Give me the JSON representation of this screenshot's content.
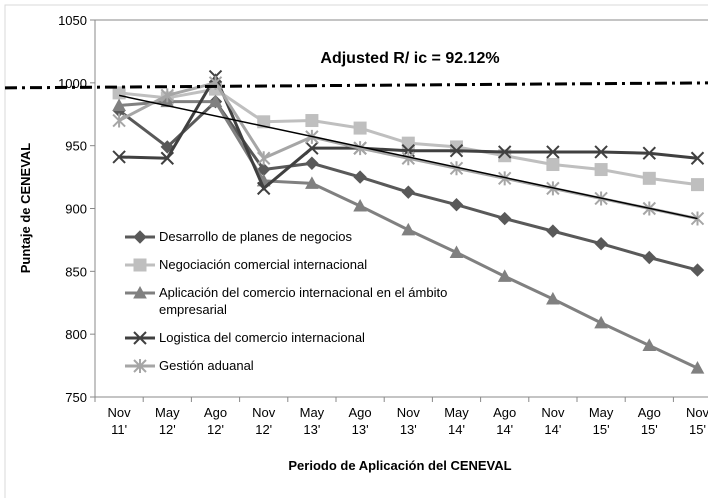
{
  "chart_data": {
    "type": "line",
    "annotation": "Adjusted R/ ic = 92.12%",
    "xlabel": "Periodo de Aplicación del CENEVAL",
    "ylabel": "Puntaje de CENEVAL",
    "categories": [
      [
        "Nov",
        "11'"
      ],
      [
        "May",
        "12'"
      ],
      [
        "Ago",
        "12'"
      ],
      [
        "Nov",
        "12'"
      ],
      [
        "May",
        "13'"
      ],
      [
        "Ago",
        "13'"
      ],
      [
        "Nov",
        "13'"
      ],
      [
        "May",
        "14'"
      ],
      [
        "Ago",
        "14'"
      ],
      [
        "Nov",
        "14'"
      ],
      [
        "May",
        "15'"
      ],
      [
        "Ago",
        "15'"
      ],
      [
        "Nov",
        "15'"
      ]
    ],
    "ylim": [
      750,
      1050
    ],
    "yticks": [
      750,
      800,
      850,
      900,
      950,
      1000,
      1050
    ],
    "series": [
      {
        "name": "Desarrollo de planes de negocios",
        "color": "#595959",
        "marker": "diamond",
        "values": [
          978,
          949,
          985,
          931,
          936,
          925,
          913,
          903,
          892,
          882,
          872,
          861,
          851
        ]
      },
      {
        "name": "Negociación comercial internacional",
        "color": "#bfbfbf",
        "marker": "square",
        "values": [
          992,
          988,
          995,
          969,
          970,
          964,
          952,
          949,
          942,
          935,
          931,
          924,
          919
        ]
      },
      {
        "name": "Aplicación del comercio internacional en el ámbito empresarial",
        "color": "#808080",
        "marker": "triangle",
        "values": [
          982,
          985,
          985,
          922,
          920,
          902,
          883,
          865,
          846,
          828,
          809,
          791,
          773
        ]
      },
      {
        "name": "Logistica del comercio internacional",
        "color": "#404040",
        "marker": "x",
        "values": [
          941,
          940,
          1005,
          916,
          948,
          948,
          946,
          946,
          945,
          945,
          945,
          944,
          940
        ]
      },
      {
        "name": "Gestión aduanal",
        "color": "#a6a6a6",
        "marker": "star",
        "values": [
          970,
          990,
          1000,
          940,
          957,
          948,
          940,
          932,
          924,
          916,
          908,
          900,
          892
        ]
      }
    ],
    "trendlines": [
      {
        "style": "dashdot",
        "color": "#000000",
        "values": [
          996,
          1000
        ]
      },
      {
        "style": "solid",
        "color": "#000000",
        "values": [
          990,
          892
        ]
      }
    ]
  }
}
